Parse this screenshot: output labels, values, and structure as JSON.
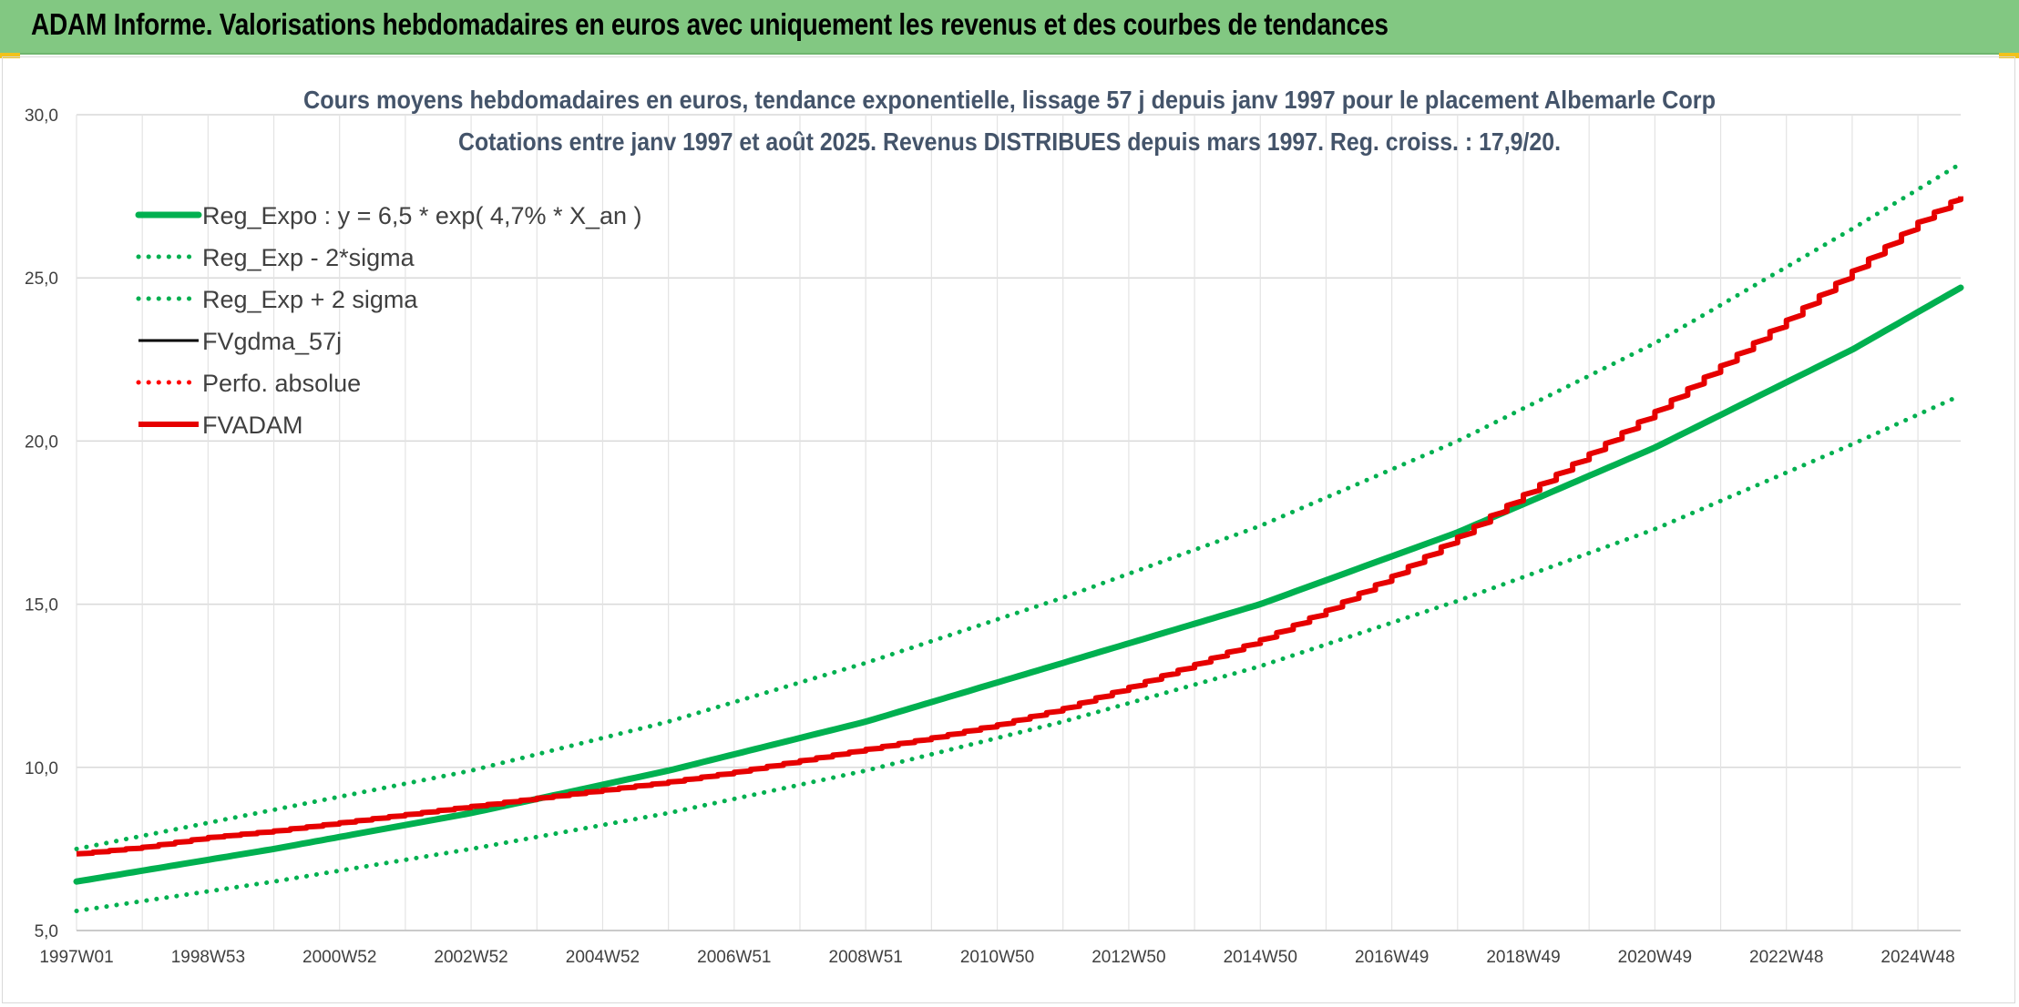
{
  "banner": {
    "title": "ADAM Informe. Valorisations hebdomadaires en euros avec uniquement les revenus et des courbes de tendances",
    "color": "#82c882"
  },
  "chart_data": {
    "type": "line",
    "title": "Cours moyens hebdomadaires en euros, tendance exponentielle, lissage 57 j depuis janv 1997 pour le placement Albemarle Corp",
    "subtitle": "Cotations entre janv 1997 et août 2025. Revenus DISTRIBUES depuis mars 1997. Reg. croiss. : 17,9/20.",
    "xlabel": "",
    "ylabel": "",
    "ylim": [
      5,
      30
    ],
    "y_ticks": [
      "5,0",
      "10,0",
      "15,0",
      "20,0",
      "25,0",
      "30,0"
    ],
    "x_range_years": [
      1997.0,
      2025.65
    ],
    "x_ticks": [
      {
        "label": "1997W01",
        "year": 1997.0
      },
      {
        "label": "1998W53",
        "year": 1999.0
      },
      {
        "label": "2000W52",
        "year": 2001.0
      },
      {
        "label": "2002W52",
        "year": 2003.0
      },
      {
        "label": "2004W52",
        "year": 2005.0
      },
      {
        "label": "2006W51",
        "year": 2007.0
      },
      {
        "label": "2008W51",
        "year": 2009.0
      },
      {
        "label": "2010W50",
        "year": 2011.0
      },
      {
        "label": "2012W50",
        "year": 2013.0
      },
      {
        "label": "2014W50",
        "year": 2015.0
      },
      {
        "label": "2016W49",
        "year": 2017.0
      },
      {
        "label": "2018W49",
        "year": 2019.0
      },
      {
        "label": "2020W49",
        "year": 2021.0
      },
      {
        "label": "2022W48",
        "year": 2023.0
      },
      {
        "label": "2024W48",
        "year": 2025.0
      }
    ],
    "grid": true,
    "legend_position": "top-left",
    "series": [
      {
        "name": "Reg_Expo : y = 6,5 * exp( 4,7% *  X_an )",
        "color": "#00b050",
        "style": "solid-thick",
        "x": [
          1997.0,
          2000.0,
          2003.0,
          2006.0,
          2009.0,
          2012.0,
          2015.0,
          2018.0,
          2021.0,
          2024.0,
          2025.65
        ],
        "y": [
          6.5,
          7.5,
          8.6,
          9.9,
          11.4,
          13.2,
          15.0,
          17.2,
          19.8,
          22.8,
          24.7
        ]
      },
      {
        "name": "Reg_Exp - 2*sigma",
        "color": "#00b050",
        "style": "dotted",
        "x": [
          1997.0,
          2000.0,
          2003.0,
          2006.0,
          2009.0,
          2012.0,
          2015.0,
          2018.0,
          2021.0,
          2024.0,
          2025.65
        ],
        "y": [
          5.6,
          6.5,
          7.5,
          8.6,
          9.9,
          11.4,
          13.1,
          15.1,
          17.3,
          19.9,
          21.4
        ]
      },
      {
        "name": "Reg_Exp + 2 sigma",
        "color": "#00b050",
        "style": "dotted",
        "x": [
          1997.0,
          2000.0,
          2003.0,
          2006.0,
          2009.0,
          2012.0,
          2015.0,
          2018.0,
          2021.0,
          2024.0,
          2025.65
        ],
        "y": [
          7.5,
          8.7,
          9.9,
          11.4,
          13.2,
          15.2,
          17.4,
          20.0,
          23.0,
          26.5,
          28.5
        ]
      },
      {
        "name": "FVgdma_57j",
        "color": "#000000",
        "style": "solid",
        "x": [],
        "y": []
      },
      {
        "name": "Perfo. absolue",
        "color": "#ff0000",
        "style": "dotted",
        "x": [],
        "y": []
      },
      {
        "name": "FVADAM",
        "color": "#e60000",
        "style": "solid-thick-stepped",
        "x": [
          1997.0,
          1998.0,
          1999.0,
          2000.0,
          2001.0,
          2002.0,
          2003.0,
          2004.0,
          2005.0,
          2006.0,
          2007.0,
          2008.0,
          2009.0,
          2010.0,
          2011.0,
          2012.0,
          2013.0,
          2014.0,
          2015.0,
          2016.0,
          2017.0,
          2018.0,
          2019.0,
          2020.0,
          2021.0,
          2022.0,
          2023.0,
          2024.0,
          2025.0,
          2025.65
        ],
        "y": [
          7.35,
          7.55,
          7.85,
          8.05,
          8.3,
          8.55,
          8.8,
          9.05,
          9.3,
          9.55,
          9.85,
          10.2,
          10.55,
          10.9,
          11.3,
          11.8,
          12.45,
          13.15,
          13.9,
          14.8,
          15.85,
          17.05,
          18.35,
          19.6,
          20.9,
          22.3,
          23.7,
          25.2,
          26.7,
          27.5
        ]
      }
    ]
  }
}
